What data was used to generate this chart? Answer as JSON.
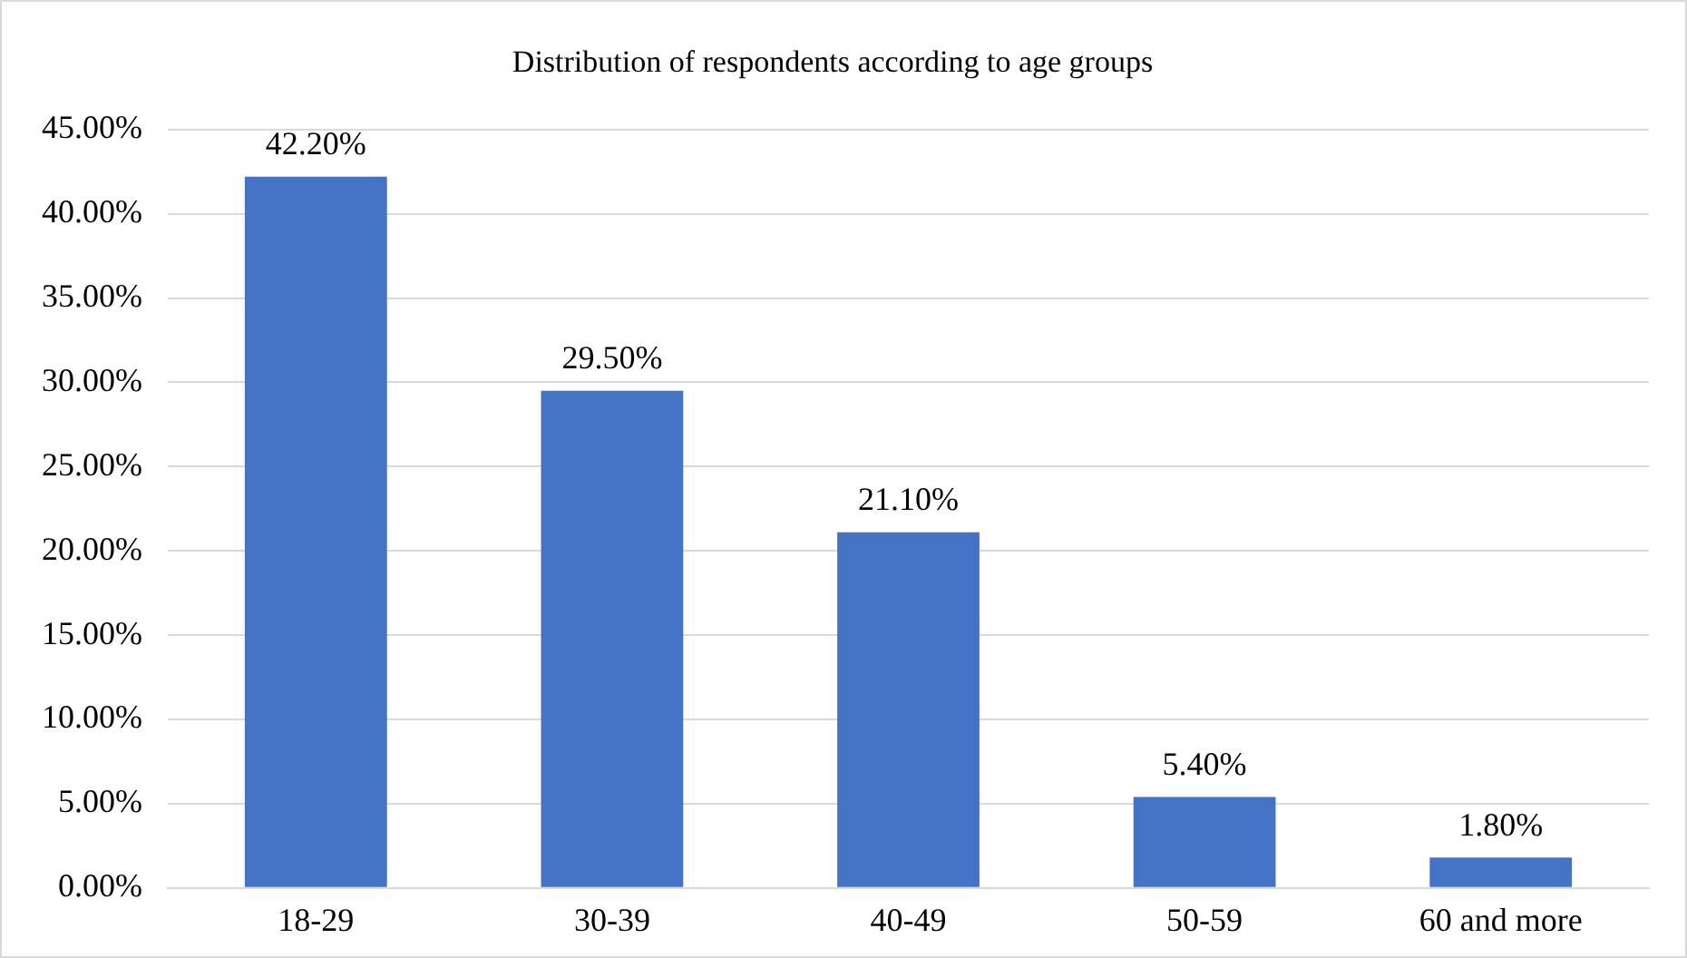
{
  "chart_data": {
    "type": "bar",
    "title": "Distribution of respondents according to age groups",
    "categories": [
      "18-29",
      "30-39",
      "40-49",
      "50-59",
      "60 and more"
    ],
    "values": [
      42.2,
      29.5,
      21.1,
      5.4,
      1.8
    ],
    "value_labels": [
      "42.20%",
      "29.50%",
      "21.10%",
      "5.40%",
      "1.80%"
    ],
    "color": "#4472c4",
    "ylim": [
      0,
      45
    ],
    "yticks": [
      {
        "value": 0,
        "label": "0.00%"
      },
      {
        "value": 5,
        "label": "5.00%"
      },
      {
        "value": 10,
        "label": "10.00%"
      },
      {
        "value": 15,
        "label": "15.00%"
      },
      {
        "value": 20,
        "label": "20.00%"
      },
      {
        "value": 25,
        "label": "25.00%"
      },
      {
        "value": 30,
        "label": "30.00%"
      },
      {
        "value": 35,
        "label": "35.00%"
      },
      {
        "value": 40,
        "label": "40.00%"
      },
      {
        "value": 45,
        "label": "45.00%"
      }
    ],
    "grid": "y",
    "legend": false
  }
}
